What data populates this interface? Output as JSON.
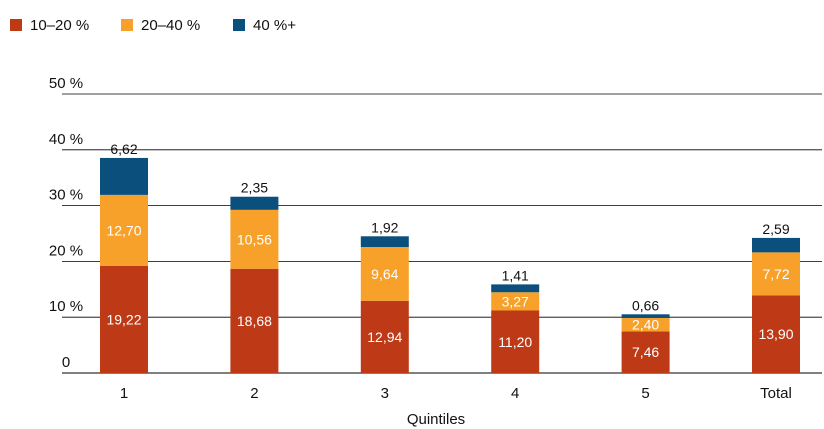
{
  "chart_data": {
    "type": "bar",
    "stacked": true,
    "categories": [
      "1",
      "2",
      "3",
      "4",
      "5",
      "Total"
    ],
    "series": [
      {
        "name": "10–20 %",
        "color": "#be3a17",
        "label_color": "#ffffff",
        "values": [
          19.22,
          18.68,
          12.94,
          11.2,
          7.46,
          13.9
        ],
        "labels": [
          "19,22",
          "18,68",
          "12,94",
          "11,20",
          "7,46",
          "13,90"
        ]
      },
      {
        "name": "20–40 %",
        "color": "#f7a12b",
        "label_color": "#ffffff",
        "values": [
          12.7,
          10.56,
          9.64,
          3.27,
          2.4,
          7.72
        ],
        "labels": [
          "12,70",
          "10,56",
          "9,64",
          "3,27",
          "2,40",
          "7,72"
        ]
      },
      {
        "name": "40 %+",
        "color": "#0b4f7c",
        "label_color": "#111111",
        "values": [
          6.62,
          2.35,
          1.92,
          1.41,
          0.66,
          2.59
        ],
        "labels": [
          "6,62",
          "2,35",
          "1,92",
          "1,41",
          "0,66",
          "2,59"
        ]
      }
    ],
    "yticks": [
      0,
      10,
      20,
      30,
      40,
      50
    ],
    "ytick_labels": [
      "0",
      "10 %",
      "20 %",
      "30 %",
      "40 %",
      "50 %"
    ],
    "ylim": [
      0,
      50
    ],
    "xlabel": "Quintiles",
    "ylabel": "",
    "legend_position": "top-left",
    "grid": true
  }
}
